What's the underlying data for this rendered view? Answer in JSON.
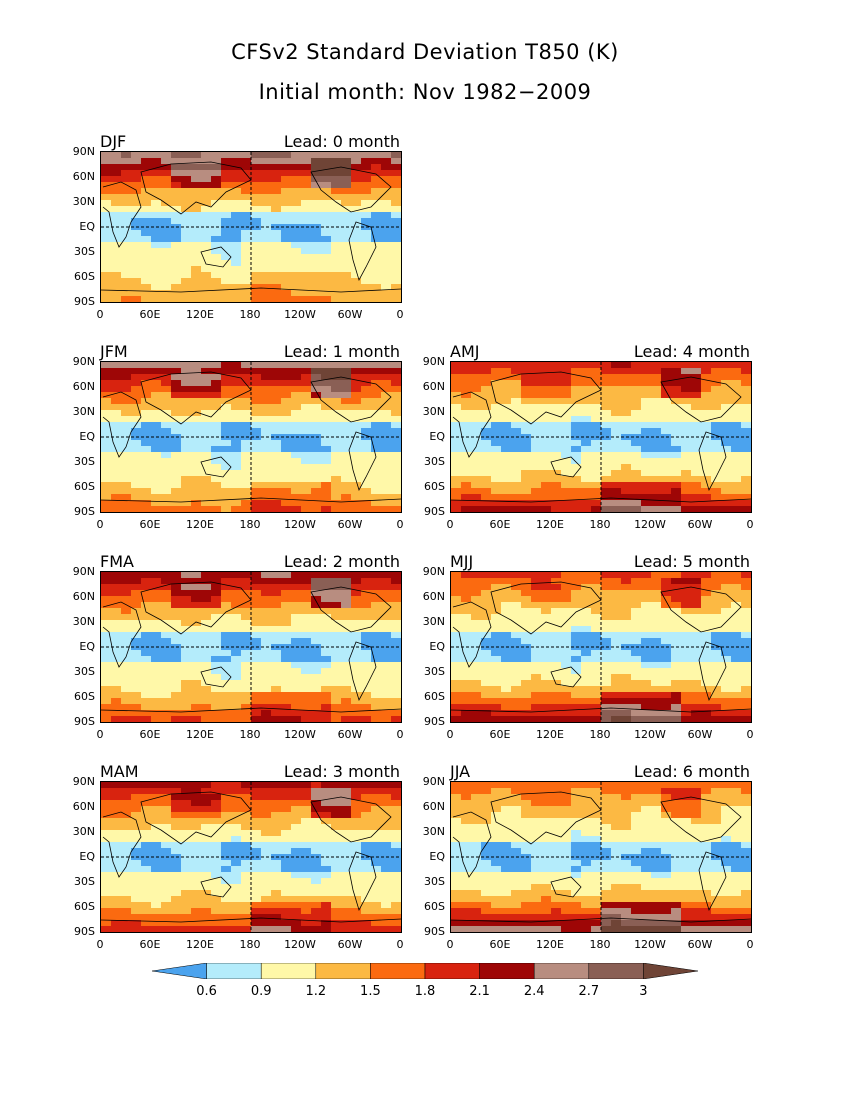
{
  "title": {
    "line1": "CFSv2 Standard Deviation T850 (K)",
    "line2": "Initial month: Nov 1982−2009"
  },
  "panels": [
    {
      "season": "DJF",
      "lead": "Lead: 0 month",
      "lead_index": 0
    },
    {
      "season": "JFM",
      "lead": "Lead: 1 month",
      "lead_index": 1
    },
    {
      "season": "FMA",
      "lead": "Lead: 2 month",
      "lead_index": 2
    },
    {
      "season": "MAM",
      "lead": "Lead: 3 month",
      "lead_index": 3
    },
    {
      "season": "AMJ",
      "lead": "Lead: 4 month",
      "lead_index": 4
    },
    {
      "season": "MJJ",
      "lead": "Lead: 5 month",
      "lead_index": 5
    },
    {
      "season": "JJA",
      "lead": "Lead: 6 month",
      "lead_index": 6
    }
  ],
  "lat_labels": [
    "90N",
    "60N",
    "30N",
    "EQ",
    "30S",
    "60S",
    "90S"
  ],
  "lon_labels": [
    "0",
    "60E",
    "120E",
    "180",
    "120W",
    "60W",
    "0"
  ],
  "colorbar": {
    "ticks": [
      "0.6",
      "0.9",
      "1.2",
      "1.5",
      "1.8",
      "2.1",
      "2.4",
      "2.7",
      "3"
    ],
    "colors": [
      "#4ba3ee",
      "#b4ecfb",
      "#fff8a8",
      "#fcb943",
      "#fb6a10",
      "#d8230f",
      "#9e0606",
      "#b88d80",
      "#8a5f55",
      "#6f4436"
    ]
  }
}
